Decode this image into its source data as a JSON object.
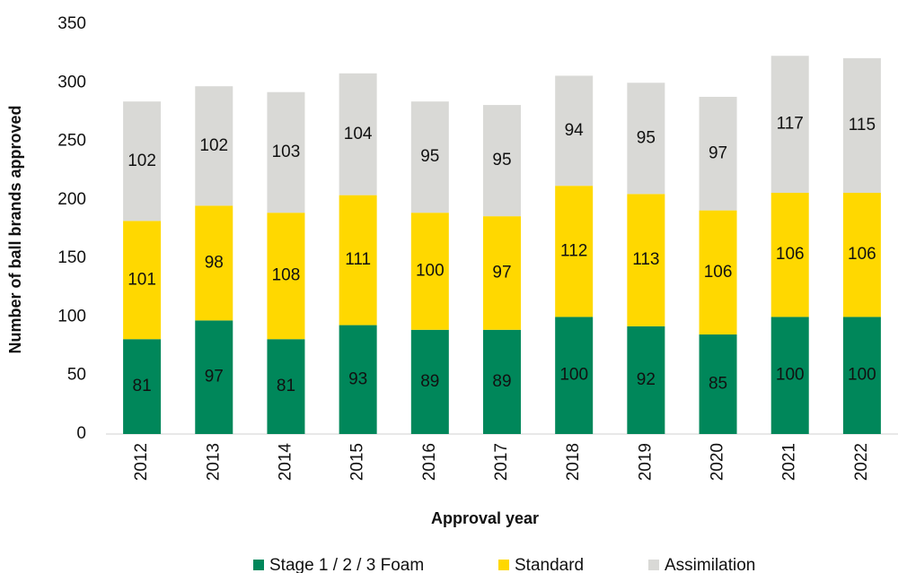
{
  "chart_data": {
    "type": "stacked_bar",
    "x_label": "Approval year",
    "y_label": "Number of ball brands approved",
    "categories": [
      "2012",
      "2013",
      "2014",
      "2015",
      "2016",
      "2017",
      "2018",
      "2019",
      "2020",
      "2021",
      "2022"
    ],
    "series": [
      {
        "name": "Stage 1 / 2 / 3 Foam",
        "color": "#00875a",
        "values": [
          81,
          97,
          81,
          93,
          89,
          89,
          100,
          92,
          85,
          100,
          100
        ]
      },
      {
        "name": "Standard",
        "color": "#ffd800",
        "values": [
          101,
          98,
          108,
          111,
          100,
          97,
          112,
          113,
          106,
          106,
          106
        ]
      },
      {
        "name": "Assimilation",
        "color": "#d9d9d6",
        "values": [
          102,
          102,
          103,
          104,
          95,
          95,
          94,
          95,
          97,
          117,
          115
        ]
      }
    ],
    "ylim": [
      0,
      350
    ],
    "yticks": [
      0,
      50,
      100,
      150,
      200,
      250,
      300,
      350
    ],
    "grid": false,
    "legend": "bottom"
  }
}
